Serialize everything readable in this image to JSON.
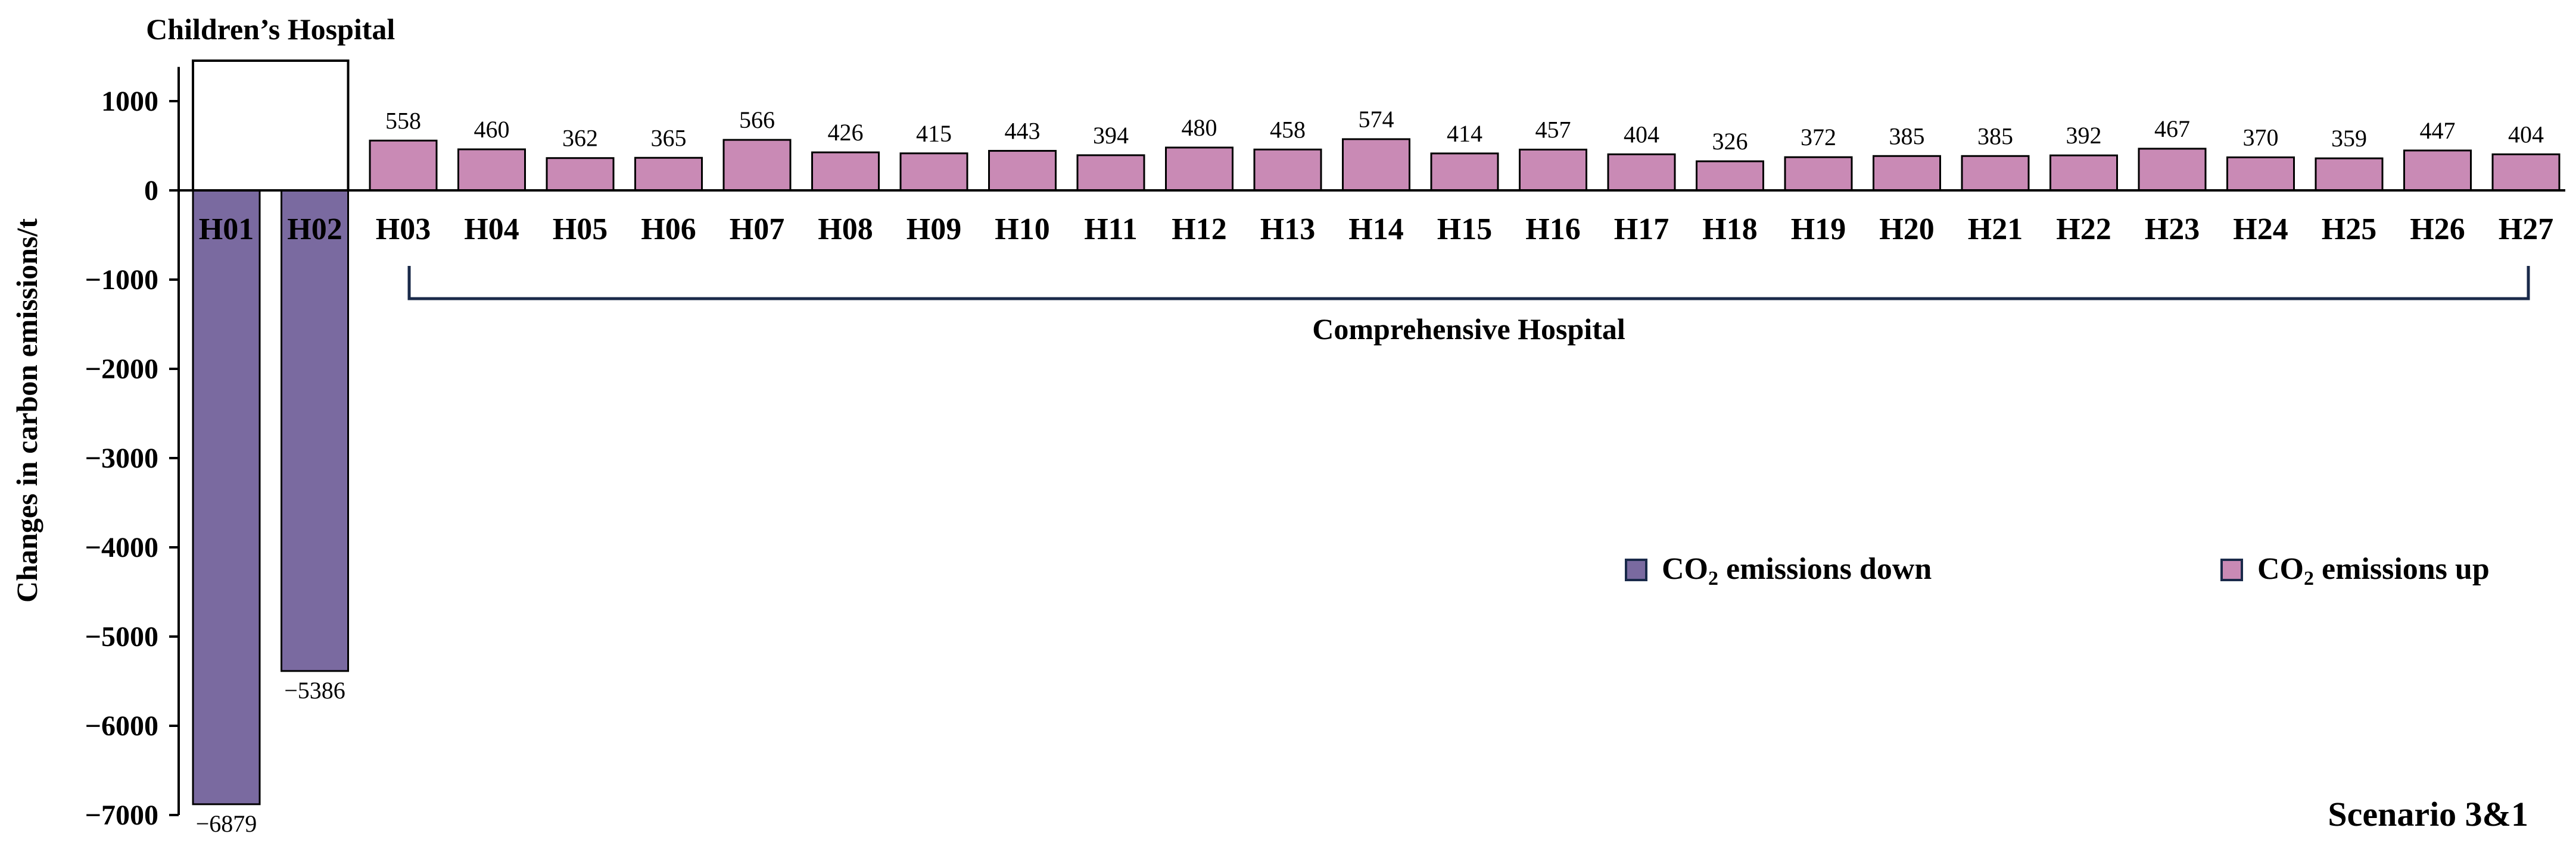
{
  "chart_data": {
    "type": "bar",
    "ylabel": "Changes in carbon emissions/t",
    "ylim": [
      -7000,
      1450
    ],
    "yticks": [
      1000,
      0,
      -1000,
      -2000,
      -3000,
      -4000,
      -5000,
      -6000,
      -7000
    ],
    "ytick_labels": [
      "1000",
      "0",
      "−1000",
      "−2000",
      "−3000",
      "−4000",
      "−5000",
      "−6000",
      "−7000"
    ],
    "grid": false,
    "categories": [
      "H01",
      "H02",
      "H03",
      "H04",
      "H05",
      "H06",
      "H07",
      "H08",
      "H09",
      "H10",
      "H11",
      "H12",
      "H13",
      "H14",
      "H15",
      "H16",
      "H17",
      "H18",
      "H19",
      "H20",
      "H21",
      "H22",
      "H23",
      "H24",
      "H25",
      "H26",
      "H27"
    ],
    "values": [
      -6879,
      -5386,
      558,
      460,
      362,
      365,
      566,
      426,
      415,
      443,
      394,
      480,
      458,
      574,
      414,
      457,
      404,
      326,
      372,
      385,
      385,
      392,
      467,
      370,
      359,
      447,
      404
    ],
    "value_labels": [
      "−6879",
      "−5386",
      "558",
      "460",
      "362",
      "365",
      "566",
      "426",
      "415",
      "443",
      "394",
      "480",
      "458",
      "574",
      "414",
      "457",
      "404",
      "326",
      "372",
      "385",
      "385",
      "392",
      "467",
      "370",
      "359",
      "447",
      "404"
    ],
    "series": [
      {
        "name": "CO₂ emissions down",
        "color": "#7a6aa0",
        "applies_to": [
          "H01",
          "H02"
        ]
      },
      {
        "name": "CO₂ emissions up",
        "color": "#c98ab5",
        "applies_to": [
          "H03",
          "H04",
          "H05",
          "H06",
          "H07",
          "H08",
          "H09",
          "H10",
          "H11",
          "H12",
          "H13",
          "H14",
          "H15",
          "H16",
          "H17",
          "H18",
          "H19",
          "H20",
          "H21",
          "H22",
          "H23",
          "H24",
          "H25",
          "H26",
          "H27"
        ]
      }
    ],
    "legend_items": [
      {
        "label_pre": "CO",
        "label_sub": "2",
        "label_post": " emissions down",
        "color": "#7a6aa0"
      },
      {
        "label_pre": "CO",
        "label_sub": "2",
        "label_post": " emissions up",
        "color": "#c98ab5"
      }
    ],
    "legend_position": "right",
    "groups": [
      {
        "label": "Children’s Hospital",
        "members": [
          "H01",
          "H02"
        ],
        "style": "box"
      },
      {
        "label": "Comprehensive Hospital",
        "members": [
          "H03",
          "H27"
        ],
        "style": "bracket"
      }
    ],
    "annotation": "Scenario 3&1"
  }
}
